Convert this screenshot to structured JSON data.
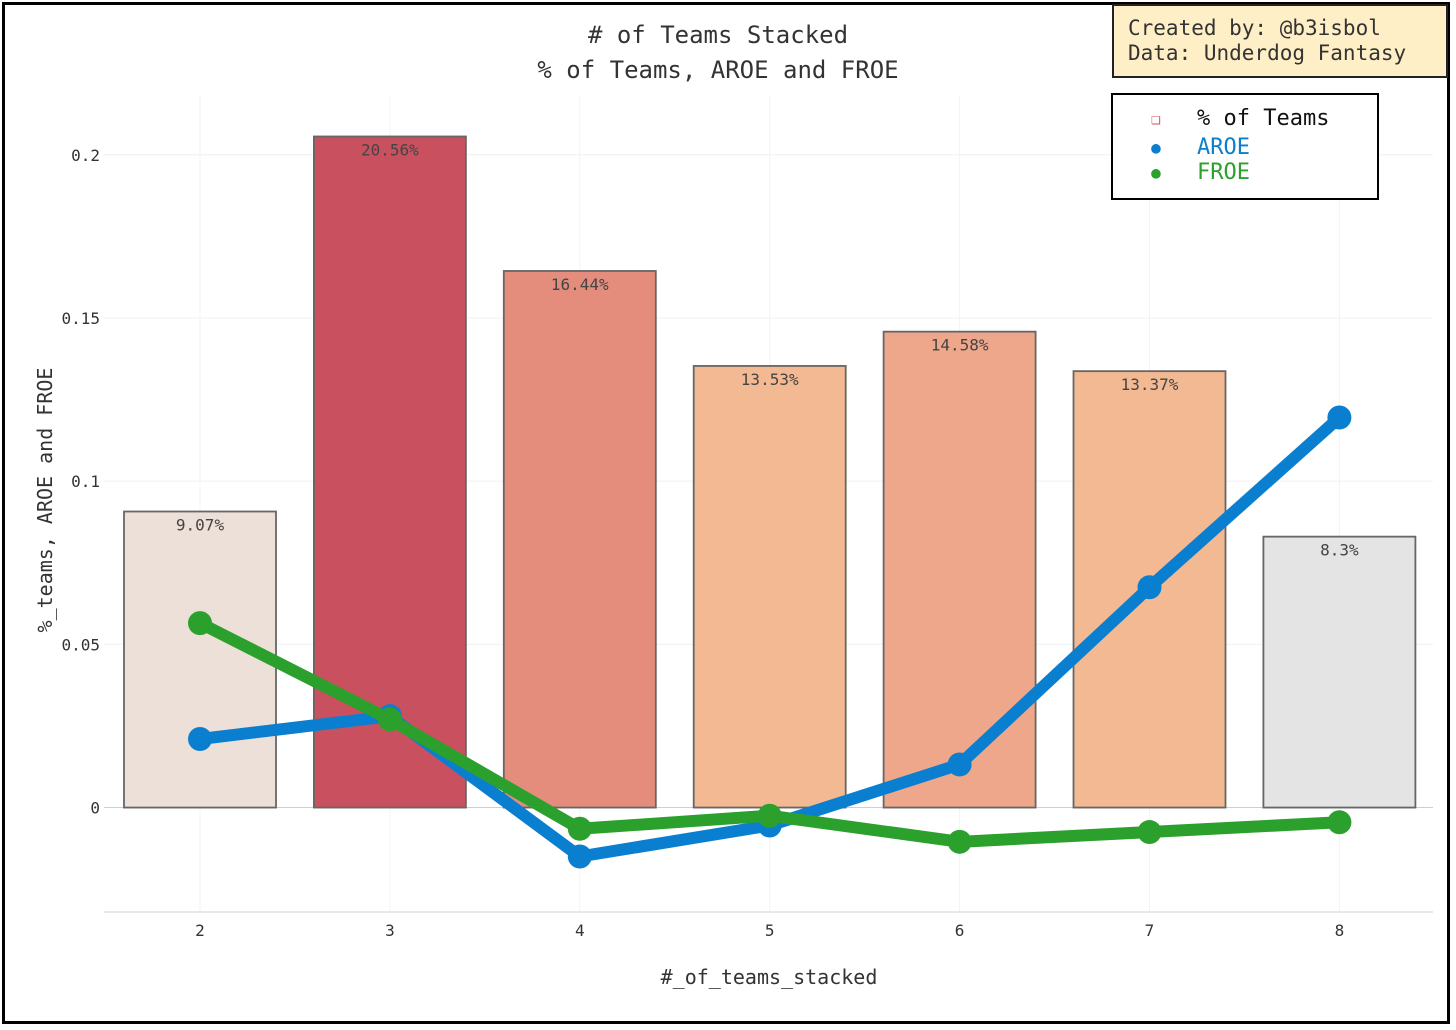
{
  "credit": {
    "line1": "Created by: @b3isbol",
    "line2": "Data: Underdog Fantasy"
  },
  "chart_data": {
    "type": "bar",
    "title": "# of Teams Stacked",
    "subtitle": "% of Teams, AROE and FROE",
    "xlabel": "#_of_teams_stacked",
    "ylabel": "%_teams, AROE and FROE",
    "categories": [
      2,
      3,
      4,
      5,
      6,
      7,
      8
    ],
    "ylim": [
      -0.032,
      0.218
    ],
    "yticks": [
      0,
      0.05,
      0.1,
      0.15,
      0.2
    ],
    "ytick_labels": [
      "0",
      "0.05",
      "0.1",
      "0.15",
      "0.2"
    ],
    "grid": true,
    "legend_position": "top-right",
    "series": [
      {
        "name": "% of Teams",
        "kind": "bar",
        "values": [
          0.0907,
          0.2056,
          0.1644,
          0.1353,
          0.1458,
          0.1337,
          0.083
        ],
        "labels": [
          "9.07%",
          "20.56%",
          "16.44%",
          "13.53%",
          "14.58%",
          "13.37%",
          "8.3%"
        ],
        "colors": [
          "#ede0d9",
          "#c9515f",
          "#e48d7d",
          "#f3b993",
          "#eea78a",
          "#f3b993",
          "#e4e4e4"
        ],
        "legend_color": "#c9515f"
      },
      {
        "name": "AROE",
        "kind": "line",
        "color": "#0b7fcf",
        "values": [
          0.021,
          0.028,
          -0.015,
          -0.0055,
          0.0132,
          0.0675,
          0.1195
        ]
      },
      {
        "name": "FROE",
        "kind": "line",
        "color": "#2ca02c",
        "values": [
          0.0565,
          0.027,
          -0.0065,
          -0.0025,
          -0.0105,
          -0.0075,
          -0.0045
        ]
      }
    ]
  }
}
